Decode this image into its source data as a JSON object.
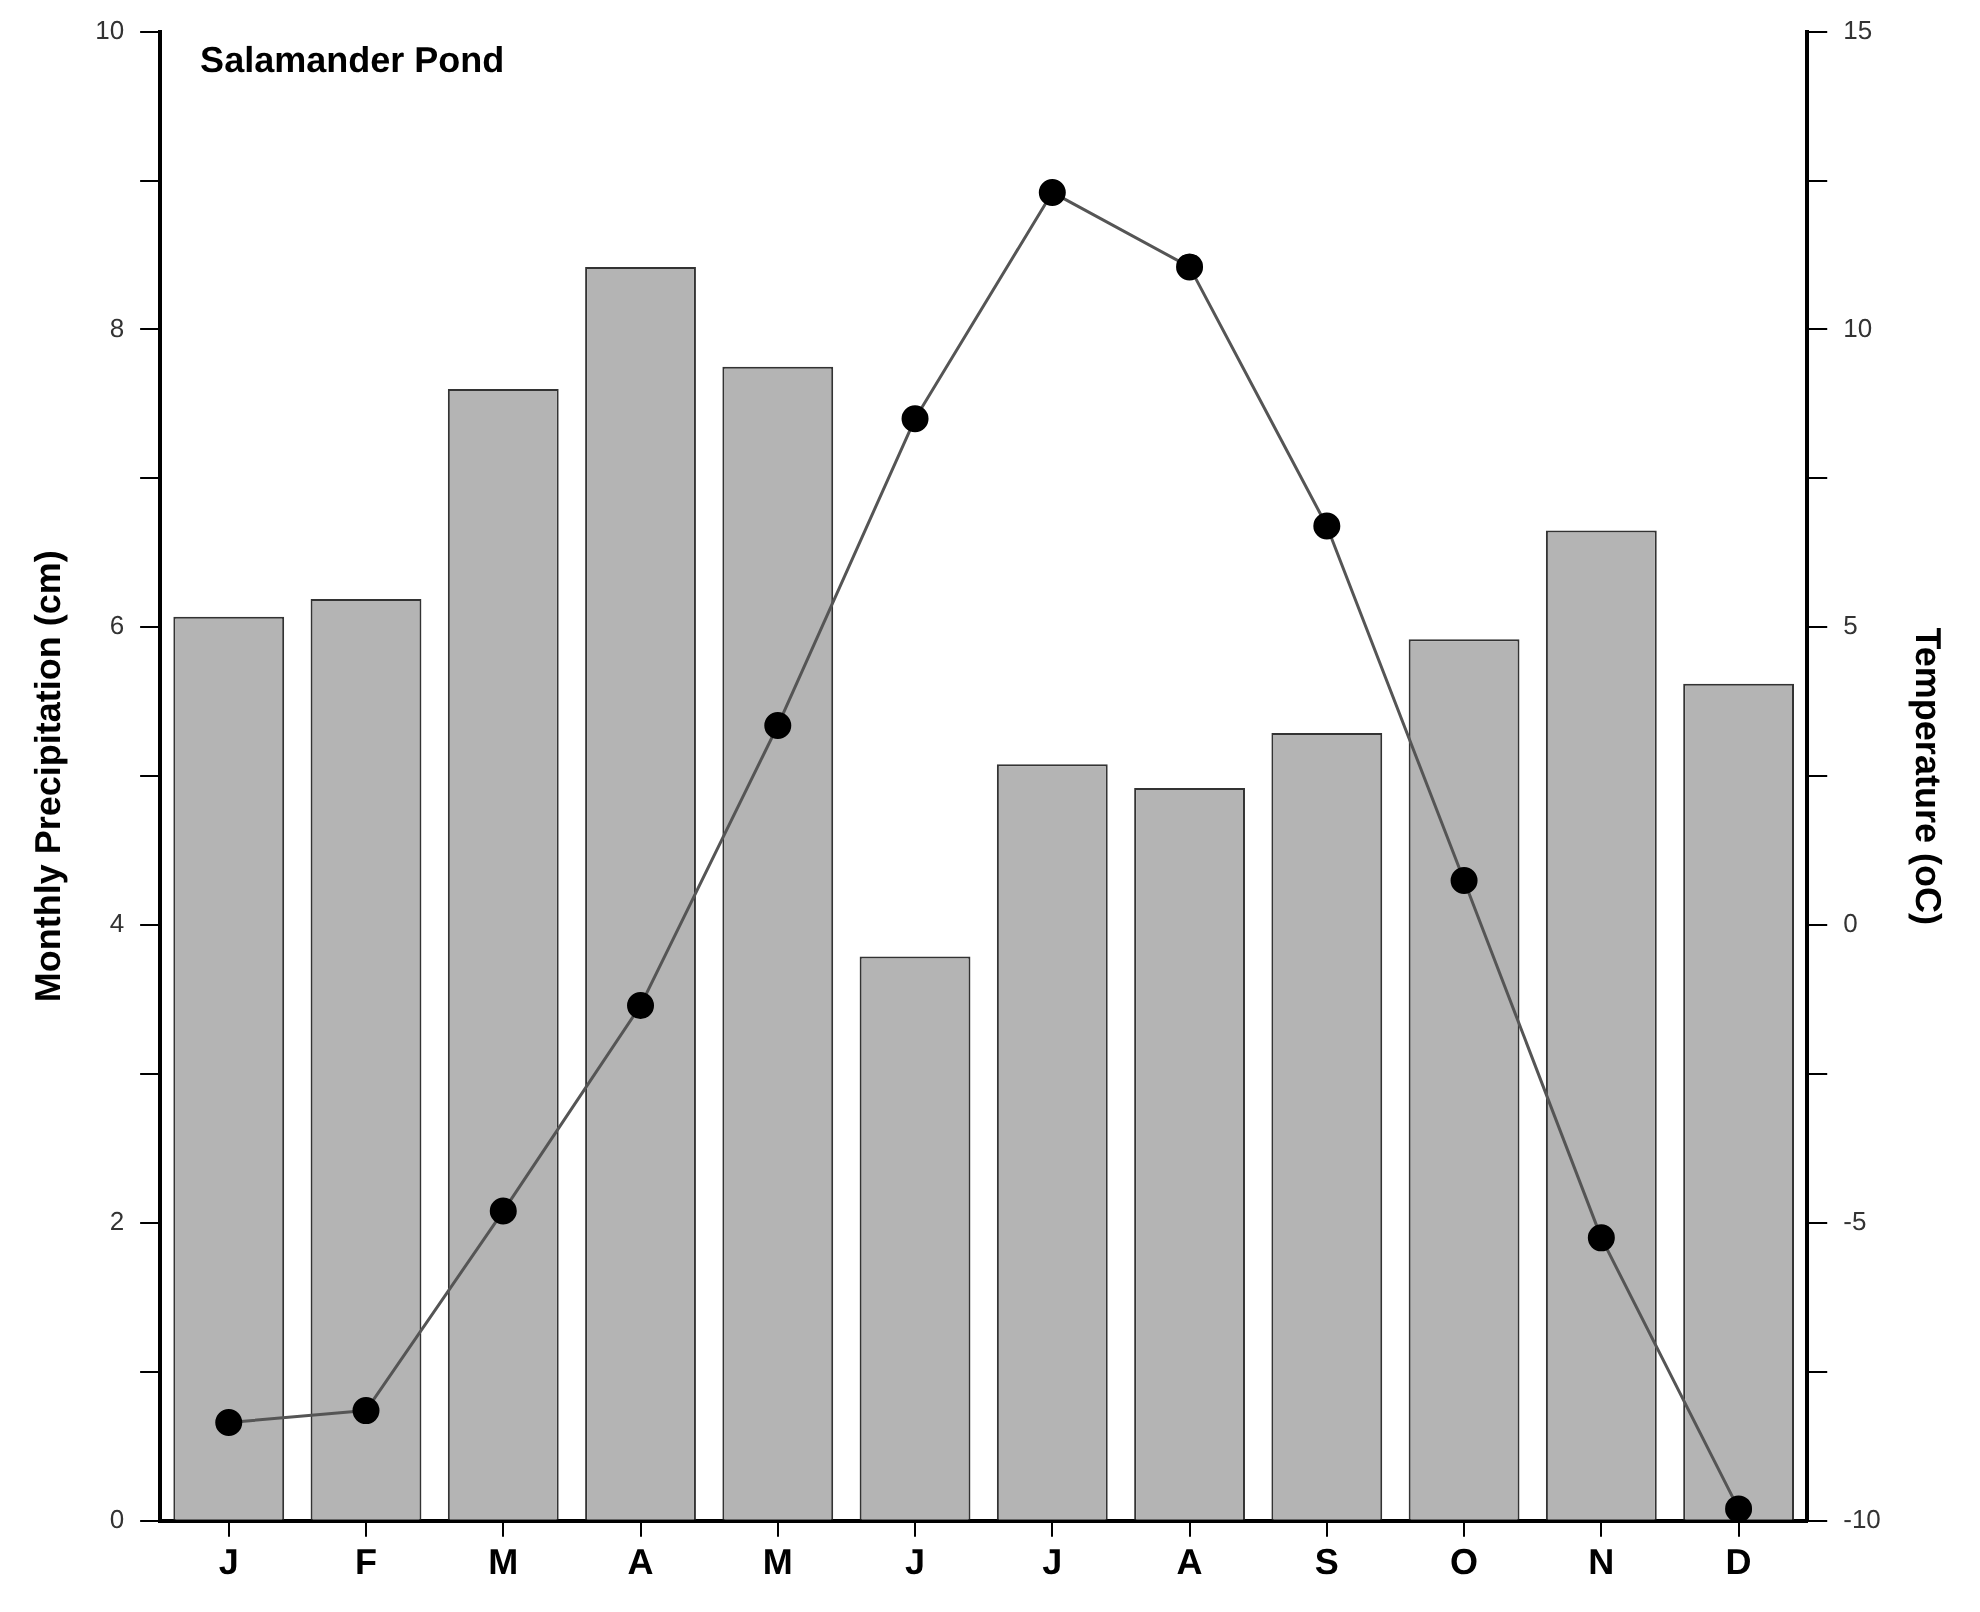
{
  "chart_data": {
    "type": "bar",
    "title": "Salamander Pond",
    "ylabel": "Monthly Precipitation (cm)",
    "y2label": "Temperature (oC)",
    "categories": [
      "J",
      "F",
      "M",
      "A",
      "M",
      "J",
      "J",
      "A",
      "S",
      "O",
      "N",
      "D"
    ],
    "series": [
      {
        "color": "#b4b4b4",
        "values": [
          6.07,
          6.19,
          7.6,
          8.42,
          7.75,
          3.79,
          5.08,
          4.92,
          5.29,
          5.92,
          6.65,
          5.62
        ]
      },
      {
        "type": "line",
        "axis": "y2",
        "color": "#000000",
        "marker": "circle",
        "values": [
          -8.35,
          -8.15,
          -4.8,
          -1.35,
          3.35,
          8.5,
          12.3,
          11.05,
          6.7,
          0.75,
          -5.25,
          -9.8
        ]
      }
    ],
    "ylim": [
      0,
      10
    ],
    "yticks": [
      0,
      {
        "value": 1,
        "label": null
      },
      2,
      {
        "value": 3,
        "label": null
      },
      4,
      {
        "value": 5,
        "label": null
      },
      6,
      {
        "value": 7,
        "label": null
      },
      8,
      {
        "value": 9,
        "label": null
      },
      10
    ],
    "y2lim": [
      -10,
      15
    ],
    "y2ticks": [
      -10,
      {
        "value": -7.5,
        "label": null
      },
      -5,
      {
        "value": -2.5,
        "label": null
      },
      0,
      {
        "value": 2.5,
        "label": null
      },
      5,
      {
        "value": 7.5,
        "label": null
      },
      10,
      {
        "value": 12.5,
        "label": null
      },
      15
    ],
    "grid": false,
    "legend": false
  }
}
